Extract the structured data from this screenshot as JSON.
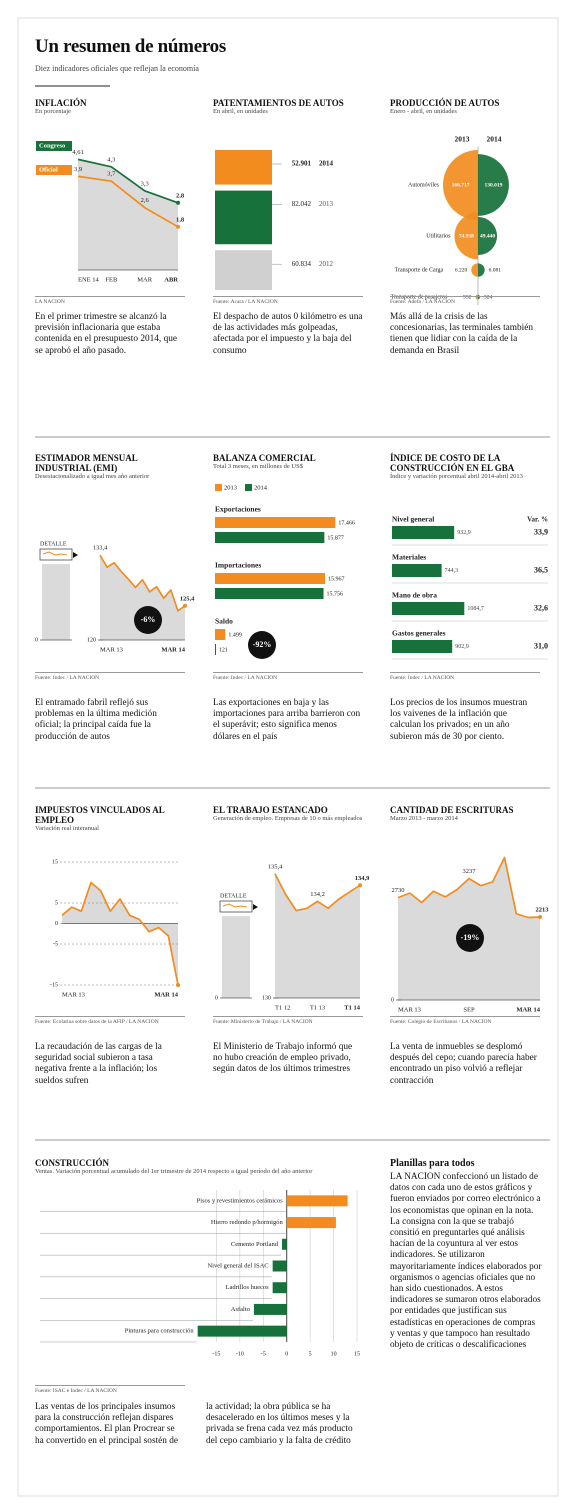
{
  "header": {
    "title": "Un resumen de números",
    "subtitle": "Diez indicadores oficiales que reflejan la economía"
  },
  "chart_data": [
    {
      "type": "line",
      "title": "INFLACIÓN",
      "subtitle": "En porcentaje",
      "categories": [
        "ENE 14",
        "FEB",
        "MAR",
        "ABR"
      ],
      "series": [
        {
          "name": "Congreso",
          "color": "#16713a",
          "values": [
            4.61,
            4.3,
            3.3,
            2.8
          ],
          "value_labels": [
            "4,61",
            "4,3",
            "3,3",
            "2,8"
          ]
        },
        {
          "name": "Oficial",
          "color": "#f28c1e",
          "values": [
            3.9,
            3.7,
            2.6,
            1.8
          ],
          "value_labels": [
            "3,9",
            "3,7",
            "2,6",
            "1,8"
          ]
        }
      ],
      "ylim": [
        0,
        5
      ],
      "source": "LA NACION",
      "caption": "En el primer trimestre se alcanzó la previsión inflacionaria que estaba contenida en el presupuesto 2014, que se aprobó el año pasado."
    },
    {
      "type": "bar",
      "title": "PATENTAMIENTOS DE AUTOS",
      "subtitle": "En abril, en unidades",
      "categories": [
        "2014",
        "2013",
        "2012"
      ],
      "values": [
        52901,
        82042,
        60834
      ],
      "value_labels": [
        "52.901",
        "82.042",
        "60.834"
      ],
      "colors": [
        "#f28c1e",
        "#16713a",
        "#d0d0d0"
      ],
      "source": "Fuente: Acara / LA NACION",
      "caption": "El despacho de autos 0 kilómetro es una de las actividades más golpeadas, afectada por el impuesto y la baja del consumo"
    },
    {
      "type": "bubble",
      "title": "PRODUCCIÓN DE AUTOS",
      "subtitle": "Enero - abril, en unidades",
      "categories": [
        "Automóviles",
        "Utilitarios",
        "Transporte de Carga",
        "Transporte de pasajeros"
      ],
      "series": [
        {
          "name": "2013",
          "color": "#f28c1e",
          "values": [
            166717,
            74938,
            6220,
            932
          ],
          "value_labels": [
            "166.717",
            "74.938",
            "6.220",
            "932"
          ]
        },
        {
          "name": "2014",
          "color": "#16713a",
          "values": [
            130019,
            49440,
            6081,
            524
          ],
          "value_labels": [
            "130.019",
            "49.440",
            "6.081",
            "524"
          ]
        }
      ],
      "source": "Fuente: Adefa / LA NACION",
      "caption": "Más allá de la crisis de las concesionarias, las terminales también tienen que lidiar con la caída de la demanda en Brasil"
    },
    {
      "type": "line",
      "title": "ESTIMADOR MENSUAL INDUSTRIAL (EMI)",
      "subtitle": "Desestacionalizado a igual mes año anterior",
      "categories": [
        "MAR 13",
        null,
        null,
        null,
        null,
        null,
        null,
        null,
        null,
        null,
        null,
        null,
        "MAR 14"
      ],
      "values": [
        133.4,
        131.5,
        132.2,
        130.8,
        129.6,
        128.3,
        129.5,
        127.6,
        128.4,
        126.6,
        127.9,
        124.6,
        125.4
      ],
      "value_labels": [
        "133,4",
        null,
        null,
        null,
        null,
        null,
        null,
        null,
        null,
        null,
        null,
        null,
        "125,4"
      ],
      "color": "#f28c1e",
      "ylim": [
        120,
        135
      ],
      "yticks": [
        120
      ],
      "inset": {
        "label": "DETALLE",
        "yticks": [
          0
        ]
      },
      "annotation": "-6%",
      "source": "Fuente: Indec / LA NACION",
      "caption": "El entramado fabril reflejó sus problemas en la última medición oficial; la principal caída fue la producción de autos"
    },
    {
      "type": "barh",
      "title": "BALANZA COMERCIAL",
      "subtitle": "Total 3 meses, en millones de US$",
      "categories": [
        "Exportaciones",
        "Importaciones",
        "Saldo"
      ],
      "series": [
        {
          "name": "2013",
          "color": "#f28c1e",
          "values": [
            17466,
            15967,
            1499
          ],
          "value_labels": [
            "17.466",
            "15.967",
            "1.499"
          ]
        },
        {
          "name": "2014",
          "color": "#16713a",
          "values": [
            15877,
            15756,
            121
          ],
          "value_labels": [
            "15.877",
            "15.756",
            "121"
          ]
        }
      ],
      "xlim": [
        0,
        18000
      ],
      "annotation": "-92%",
      "source": "Fuente: Indec / LA NACION",
      "caption": "Las exportaciones en baja y las importaciones para arriba barrieron con el superávit; esto significa menos dólares en el país"
    },
    {
      "type": "barh",
      "title": "ÍNDICE DE COSTO DE LA CONSTRUCCIÓN EN EL GBA",
      "subtitle": "Índice y variación porcentual abril 2014-abril 2013",
      "categories": [
        "Nivel general",
        "Materiales",
        "Mano de obra",
        "Gastos generales"
      ],
      "values": [
        932.9,
        744.3,
        1084.7,
        902.9
      ],
      "value_labels": [
        "932,9",
        "744,3",
        "1084,7",
        "902,9"
      ],
      "variation_header": "Var. %",
      "variation": [
        33.9,
        36.5,
        32.6,
        31.0
      ],
      "variation_labels": [
        "33,9",
        "36,5",
        "32,6",
        "31,0"
      ],
      "color": "#16713a",
      "xlim": [
        0,
        1200
      ],
      "source": "Fuente: Indec / LA NACION",
      "caption": "Los precios de los insumos muestran los vaivenes de la inflación que calculan los privados; en un año subieron más de 30 por ciento."
    },
    {
      "type": "line",
      "title": "IMPUESTOS VINCULADOS AL EMPLEO",
      "subtitle": "Variación real interanual",
      "categories": [
        "MAR 13",
        null,
        null,
        null,
        null,
        null,
        null,
        null,
        null,
        null,
        null,
        null,
        "MAR 14"
      ],
      "values": [
        2,
        4,
        3,
        10,
        8,
        3,
        6,
        2,
        1,
        -2,
        -1,
        -3,
        -15
      ],
      "color": "#f28c1e",
      "ylim": [
        -15,
        15
      ],
      "yticks": [
        15,
        5,
        0,
        -5,
        -15
      ],
      "grid": true,
      "source": "Fuente: Ecolatina sobre datos de la AFIP / LA NACION",
      "caption": "La recaudación de las cargas de la seguridad social subieron a tasa negativa frente a la inflación; los sueldos sufren"
    },
    {
      "type": "line",
      "title": "EL TRABAJO ESTANCADO",
      "subtitle": "Generación de empleo. Empresas de 10 o más empleados",
      "categories": [
        "T1 12",
        null,
        null,
        null,
        "T1 13",
        null,
        null,
        null,
        "T1 14"
      ],
      "values": [
        135.4,
        134.5,
        133.8,
        133.9,
        134.2,
        133.9,
        134.3,
        134.6,
        134.9
      ],
      "value_labels": [
        "135,4",
        null,
        null,
        null,
        "134,2",
        null,
        null,
        null,
        "134,9"
      ],
      "color": "#f28c1e",
      "ylim": [
        130,
        136
      ],
      "yticks": [
        130
      ],
      "inset": {
        "label": "DETALLE",
        "yticks": [
          0
        ]
      },
      "source": "Fuente: Ministerio de Trabajo / LA NACION",
      "caption": "El Ministerio de Trabajo informó que no hubo creación de empleo privado, según datos de los últimos trimestres"
    },
    {
      "type": "line",
      "title": "CANTIDAD DE ESCRITURAS",
      "subtitle": "Marzo 2013 - marzo 2014",
      "categories": [
        "MAR 13",
        null,
        null,
        null,
        null,
        null,
        "SEP",
        null,
        null,
        null,
        null,
        null,
        "MAR 14"
      ],
      "values": [
        2730,
        2850,
        2600,
        2900,
        2750,
        2950,
        3237,
        3050,
        3150,
        3800,
        2300,
        2200,
        2213
      ],
      "value_labels": [
        "2730",
        null,
        null,
        null,
        null,
        null,
        "3237",
        null,
        null,
        null,
        null,
        null,
        "2213"
      ],
      "color": "#f28c1e",
      "ylim": [
        0,
        4000
      ],
      "yticks": [
        0
      ],
      "annotation": "-19%",
      "source": "Fuente: Colegio de Escribanos / LA NACION",
      "caption": "La venta de inmuebles se desplomó después del cepo; cuando parecía haber encontrado un piso volvió a reflejar contracción"
    },
    {
      "type": "barh",
      "title": "CONSTRUCCIÓN",
      "subtitle": "Ventas. Variación porcentual acumulado del 1er trimestre de 2014 respecto a igual período del año anterior",
      "categories": [
        "Pisos y revestimientos cerámicos",
        "Hierro redondo p/hormigón",
        "Cemento Portland",
        "Nivel general del ISAC",
        "Ladrillos huecos",
        "Asfalto",
        "Pinturas para construcción"
      ],
      "values": [
        13,
        10.5,
        -1,
        -3,
        -3,
        -7,
        -19
      ],
      "color_positive": "#f28c1e",
      "color_negative": "#16713a",
      "xlim": [
        -20,
        15
      ],
      "xticks": [
        -15,
        -10,
        -5,
        0,
        5,
        10,
        15
      ],
      "source": "Fuente: ISAC e Indec / LA NACION",
      "caption": "Las ventas de los principales insumos para la construcción reflejan dispares comportamientos. El plan Procrear se ha convertido en el principal sostén de la actividad; la obra pública se ha desacelerado en los últimos meses y la privada se frena cada vez más producto del cepo cambiario y la falta de crédito"
    }
  ],
  "sidebar": {
    "title": "Planillas para todos",
    "text": "LA NACION confeccionó un listado de datos con cada uno de estos gráficos y fueron enviados por correo electrónico a los economistas que opinan en la nota. La consigna con la que se trabajó consitió en preguntarles qué análisis hacían de la coyuntura al ver estos indicadores. Se utilizaron mayoritariamente índices elaborados por organismos o agencias oficiales que no han sido cuestionados. A estos indicadores se sumaron otros elaborados por entidades que justifican sus estadísticas en operaciones de compras y ventas y que tampoco han resultado objeto de críticas o descalificaciones"
  }
}
